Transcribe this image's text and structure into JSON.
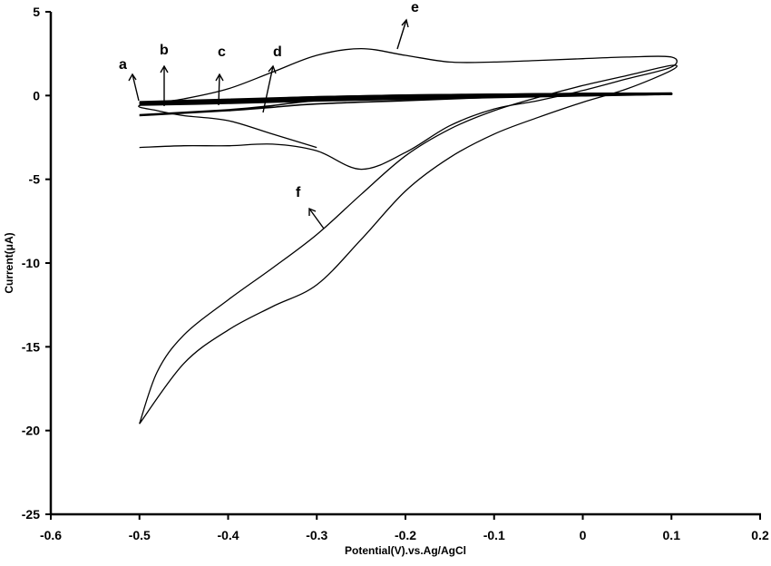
{
  "chart_data": {
    "type": "line",
    "title": "",
    "xlabel": "Potential(V).vs.Ag/AgCl",
    "ylabel": "Current(μA)",
    "xlim": [
      -0.6,
      0.2
    ],
    "ylim": [
      -25,
      5
    ],
    "x_ticks": [
      -0.6,
      -0.5,
      -0.4,
      -0.3,
      -0.2,
      -0.1,
      0,
      0.1,
      0.2
    ],
    "x_tick_labels": [
      "-0.6",
      "-0.5",
      "-0.4",
      "-0.3",
      "-0.2",
      "-0.1",
      "0",
      "0.1",
      "0.2"
    ],
    "y_ticks": [
      5,
      0,
      -5,
      -10,
      -15,
      -20,
      -25
    ],
    "y_tick_labels": [
      "5",
      "0",
      "-5",
      "-10",
      "-15",
      "-20",
      "-25"
    ],
    "grid": false,
    "legend": "none (curves labelled a-f with arrows)",
    "series": [
      {
        "name": "a",
        "x": [
          -0.5,
          -0.4,
          -0.3,
          -0.2,
          -0.1,
          0.0,
          0.1,
          0.0,
          -0.1,
          -0.2,
          -0.3,
          -0.4,
          -0.5
        ],
        "y": [
          -0.4,
          -0.3,
          -0.2,
          -0.1,
          0.0,
          0.05,
          0.1,
          0.1,
          0.05,
          0.0,
          -0.1,
          -0.25,
          -0.4
        ]
      },
      {
        "name": "b",
        "x": [
          -0.5,
          -0.4,
          -0.3,
          -0.2,
          -0.1,
          0.0,
          0.1,
          0.0,
          -0.1,
          -0.2,
          -0.3,
          -0.4,
          -0.5
        ],
        "y": [
          -0.5,
          -0.35,
          -0.25,
          -0.15,
          -0.05,
          0.05,
          0.1,
          0.1,
          0.05,
          0.0,
          -0.1,
          -0.3,
          -0.45
        ]
      },
      {
        "name": "c",
        "x": [
          -0.5,
          -0.4,
          -0.3,
          -0.2,
          -0.1,
          0.0,
          0.1,
          0.0,
          -0.1,
          -0.2,
          -0.3,
          -0.4,
          -0.5
        ],
        "y": [
          -0.55,
          -0.45,
          -0.3,
          -0.2,
          -0.1,
          0.0,
          0.1,
          0.1,
          0.05,
          -0.05,
          -0.15,
          -0.35,
          -0.5
        ]
      },
      {
        "name": "d",
        "x": [
          -0.5,
          -0.4,
          -0.35,
          -0.3,
          -0.2,
          -0.1,
          0.0,
          0.1,
          0.0,
          -0.1,
          -0.2,
          -0.3,
          -0.35,
          -0.4,
          -0.5
        ],
        "y": [
          -1.2,
          -0.9,
          -0.7,
          -0.5,
          -0.3,
          -0.1,
          0.05,
          0.15,
          0.1,
          0.0,
          -0.1,
          -0.3,
          -0.6,
          -0.85,
          -1.15
        ]
      },
      {
        "name": "e",
        "x": [
          -0.5,
          -0.45,
          -0.4,
          -0.35,
          -0.3,
          -0.25,
          -0.2,
          -0.15,
          -0.1,
          -0.05,
          0.0,
          0.05,
          0.1,
          0.1,
          0.05,
          0.0,
          -0.05,
          -0.1,
          -0.15,
          -0.2,
          -0.25,
          -0.3,
          -0.35,
          -0.4,
          -0.45,
          -0.5,
          -0.48,
          -0.45,
          -0.4,
          -0.35,
          -0.3
        ],
        "y": [
          -3.1,
          -3.0,
          -3.0,
          -2.9,
          -3.3,
          -4.4,
          -3.4,
          -1.8,
          -0.8,
          -0.3,
          0.3,
          1.0,
          1.7,
          2.3,
          2.3,
          2.2,
          2.1,
          2.0,
          2.0,
          2.4,
          2.8,
          2.4,
          1.4,
          0.4,
          -0.2,
          -0.6,
          -0.9,
          -1.2,
          -1.5,
          -2.3,
          -3.1
        ]
      },
      {
        "name": "f",
        "x": [
          -0.5,
          -0.48,
          -0.45,
          -0.4,
          -0.35,
          -0.3,
          -0.25,
          -0.2,
          -0.15,
          -0.1,
          -0.05,
          0.0,
          0.05,
          0.1,
          0.1,
          0.05,
          0.0,
          -0.05,
          -0.1,
          -0.15,
          -0.2,
          -0.25,
          -0.3,
          -0.35,
          -0.4,
          -0.45,
          -0.5
        ],
        "y": [
          -19.6,
          -16.5,
          -14.3,
          -12.2,
          -10.3,
          -8.3,
          -5.9,
          -3.6,
          -2.0,
          -0.9,
          -0.1,
          0.6,
          1.2,
          1.8,
          1.5,
          0.4,
          -0.4,
          -1.3,
          -2.3,
          -3.7,
          -5.7,
          -8.6,
          -11.3,
          -12.6,
          -14.0,
          -16.0,
          -19.6
        ]
      }
    ],
    "annotations": [
      {
        "label": "a",
        "arrow_to_curve": "a",
        "x": -0.508,
        "y": 1.0
      },
      {
        "label": "b",
        "arrow_to_curve": "b",
        "x": -0.47,
        "y": 2.2
      },
      {
        "label": "c",
        "arrow_to_curve": "c",
        "x": -0.41,
        "y": 1.7
      },
      {
        "label": "d",
        "arrow_to_curve": "d",
        "x": -0.356,
        "y": 1.5
      },
      {
        "label": "e",
        "arrow_to_curve": "e",
        "x": -0.195,
        "y": 4.3
      },
      {
        "label": "f",
        "arrow_to_curve": "f",
        "x": -0.32,
        "y": -5.8
      }
    ]
  },
  "labels": {
    "a": "a",
    "b": "b",
    "c": "c",
    "d": "d",
    "e": "e",
    "f": "f"
  },
  "axes": {
    "xlabel": "Potential(V).vs.Ag/AgCl",
    "ylabel": "Current(μA)"
  },
  "colors": {
    "line": "#000000",
    "background": "#ffffff"
  }
}
